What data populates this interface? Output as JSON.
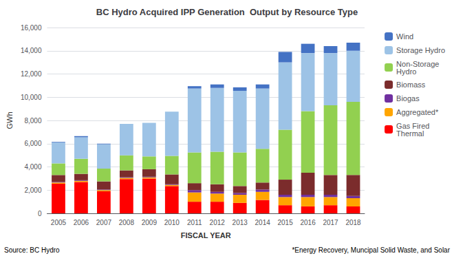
{
  "chart_data": {
    "type": "bar",
    "stacked": true,
    "title": "BC Hydro Acquired IPP Generation  Output by Resource Type",
    "xlabel": "FISCAL YEAR",
    "ylabel": "GWh",
    "categories": [
      "2005",
      "2006",
      "2007",
      "2008",
      "2009",
      "2010",
      "2011",
      "2012",
      "2013",
      "2014",
      "2015",
      "2016",
      "2017",
      "2018"
    ],
    "series": [
      {
        "name": "Gas Fired\nThermal",
        "color": "#FF0000",
        "values": [
          2550,
          2700,
          1900,
          2950,
          3000,
          2350,
          1000,
          1000,
          900,
          1150,
          700,
          600,
          700,
          600
        ]
      },
      {
        "name": "Aggregated*",
        "color": "#FFA500",
        "values": [
          100,
          100,
          100,
          100,
          100,
          100,
          800,
          700,
          700,
          700,
          700,
          800,
          700,
          700
        ]
      },
      {
        "name": "Biogas",
        "color": "#7030A0",
        "values": [
          50,
          50,
          50,
          50,
          50,
          50,
          200,
          150,
          150,
          200,
          200,
          200,
          200,
          200
        ]
      },
      {
        "name": "Biomass",
        "color": "#7B2C2C",
        "values": [
          600,
          550,
          700,
          600,
          650,
          850,
          600,
          650,
          600,
          600,
          1300,
          1900,
          1700,
          1800
        ]
      },
      {
        "name": "Non-Storage\nHydro",
        "color": "#92D050",
        "values": [
          1000,
          1300,
          1100,
          1300,
          1100,
          1600,
          2650,
          2800,
          2900,
          2900,
          4300,
          5300,
          6000,
          6300
        ]
      },
      {
        "name": "Storage Hydro",
        "color": "#9DC3E6",
        "values": [
          1800,
          1850,
          2100,
          2700,
          2900,
          3800,
          5500,
          5500,
          5300,
          5200,
          5800,
          5000,
          4500,
          4400
        ]
      },
      {
        "name": "Wind",
        "color": "#4472C4",
        "values": [
          50,
          100,
          50,
          0,
          0,
          0,
          200,
          300,
          300,
          350,
          900,
          800,
          600,
          700
        ]
      }
    ],
    "ylim": [
      0,
      16000
    ],
    "yticks": [
      0,
      {
        "value": 2000,
        "label": "2,000"
      },
      {
        "value": 4000,
        "label": "4,000"
      },
      {
        "value": 6000,
        "label": "6,000"
      },
      {
        "value": 8000,
        "label": "8,000"
      },
      {
        "value": 10000,
        "label": "10,000"
      },
      {
        "value": 12000,
        "label": "12,000"
      },
      {
        "value": 14000,
        "label": "14,000"
      },
      {
        "value": 16000,
        "label": "16,000"
      }
    ],
    "grid": true,
    "legend": "right",
    "annotations": [
      "Source: BC Hydro",
      "*Energy Recovery, Muncipal Solid Waste, and Solar"
    ]
  }
}
